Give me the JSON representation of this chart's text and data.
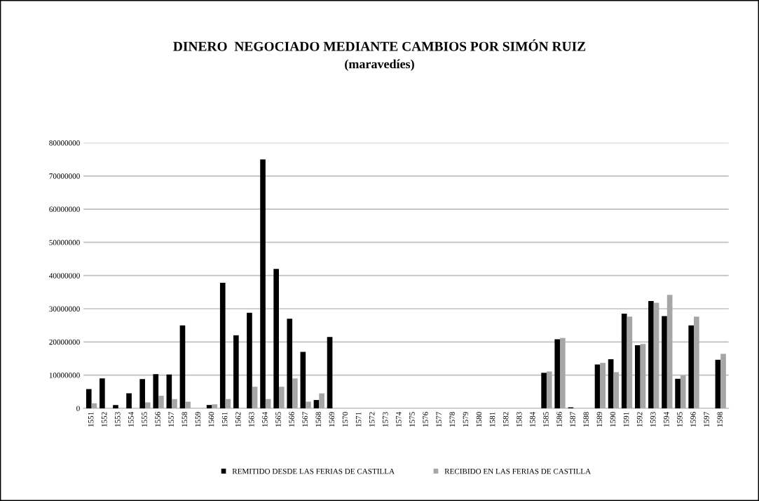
{
  "chart_data": {
    "type": "bar",
    "title": "DINERO  NEGOCIADO MEDIANTE CAMBIOS POR SIMÓN RUIZ",
    "subtitle": "(maravedíes)",
    "categories": [
      "1551",
      "1552",
      "1553",
      "1554",
      "1555",
      "1556",
      "1557",
      "1558",
      "1559",
      "1560",
      "1561",
      "1562",
      "1563",
      "1564",
      "1565",
      "1566",
      "1567",
      "1568",
      "1569",
      "1570",
      "1571",
      "1572",
      "1573",
      "1574",
      "1575",
      "1576",
      "1577",
      "1578",
      "1579",
      "1580",
      "1581",
      "1582",
      "1583",
      "1584",
      "1585",
      "1586",
      "1587",
      "1588",
      "1589",
      "1590",
      "1591",
      "1592",
      "1593",
      "1594",
      "1595",
      "1596",
      "1597",
      "1598"
    ],
    "series": [
      {
        "name": "REMITIDO DESDE LAS FERIAS DE CASTILLA",
        "color": "#000000",
        "values": [
          5800000,
          9000000,
          1000000,
          4500000,
          8800000,
          10300000,
          10200000,
          25000000,
          null,
          1000000,
          37800000,
          22000000,
          28800000,
          75000000,
          42000000,
          27000000,
          17000000,
          2500000,
          21500000,
          null,
          null,
          null,
          null,
          null,
          null,
          null,
          null,
          null,
          null,
          null,
          null,
          null,
          null,
          null,
          10700000,
          20800000,
          300000,
          null,
          13200000,
          14800000,
          28500000,
          19000000,
          32300000,
          27800000,
          8900000,
          25000000,
          null,
          14600000
        ]
      },
      {
        "name": "RECIBIDO EN LAS FERIAS DE CASTILLA",
        "color": "#a6a6a6",
        "values": [
          1500000,
          null,
          null,
          null,
          1800000,
          3800000,
          2800000,
          2000000,
          null,
          1200000,
          2800000,
          null,
          6500000,
          2800000,
          6500000,
          9000000,
          2000000,
          4500000,
          null,
          null,
          null,
          null,
          null,
          null,
          null,
          null,
          null,
          null,
          null,
          null,
          null,
          null,
          null,
          null,
          11100000,
          21200000,
          null,
          null,
          13700000,
          10900000,
          27600000,
          19400000,
          31800000,
          34200000,
          9900000,
          27600000,
          null,
          16400000
        ]
      }
    ],
    "ylim": [
      0,
      80000000
    ],
    "yticks": [
      0,
      10000000,
      20000000,
      30000000,
      40000000,
      50000000,
      60000000,
      70000000,
      80000000
    ],
    "grid": "y",
    "legend": "bottom"
  }
}
